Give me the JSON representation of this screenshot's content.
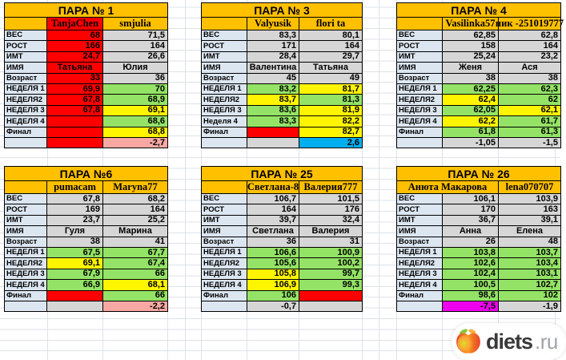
{
  "palette": {
    "orange": "#FFC000",
    "red": "#FE0000",
    "green": "#94E366",
    "yellow": "#FFF500",
    "pink": "#F7A8A3",
    "blue": "#00AEEF",
    "magenta": "#EE00EE",
    "gray": "#D6D6D6",
    "label": "#DCE6F1",
    "grid_line": "#DDE2E8",
    "logo_text": "#3A3A3A",
    "logo_suffix": "#9FA4A9"
  },
  "tables": [
    {
      "title": "ПАРА № 1",
      "names": {
        "n1": "TanjaChen",
        "n1_bg": "red",
        "n2": "smjulia",
        "n2_bg": "orange",
        "merged": false
      },
      "rows": [
        {
          "label": "ВЕС",
          "v1": "68",
          "c1": "red",
          "v2": "71,5",
          "c2": "gray"
        },
        {
          "label": "РОСТ",
          "v1": "166",
          "c1": "red",
          "v2": "164",
          "c2": "gray"
        },
        {
          "label": "ИМТ",
          "v1": "24,7",
          "c1": "red",
          "v2": "26,6",
          "c2": "gray"
        },
        {
          "label": "ИМЯ",
          "v1": "Татьяна",
          "c1": "red",
          "v2": "Юлия",
          "c2": "gray",
          "align": "center"
        },
        {
          "label": "Возраст",
          "v1": "33",
          "c1": "red",
          "v2": "36",
          "c2": "gray"
        },
        {
          "label": "НЕДЕЛЯ 1",
          "v1": "69,9",
          "c1": "red",
          "v2": "70",
          "c2": "green"
        },
        {
          "label": "НЕДЕЛЯ2",
          "v1": "67,8",
          "c1": "red",
          "v2": "68,9",
          "c2": "green"
        },
        {
          "label": "НЕДЕЛЯ 3",
          "v1": "67,8",
          "c1": "red",
          "v2": "69,1",
          "c2": "yellow"
        },
        {
          "label": "НЕДЕЛЯ 4",
          "v1": "",
          "c1": "red",
          "v2": "68,6",
          "c2": "green"
        },
        {
          "label": "Финал",
          "v1": "",
          "c1": "red",
          "v2": "68,8",
          "c2": "yellow"
        },
        {
          "label": "",
          "v1": "",
          "c1": "red",
          "v2": "-2,7",
          "c2": "pink"
        }
      ]
    },
    {
      "title": "ПАРА № 3",
      "names": {
        "n1": "Valyusik",
        "n1_bg": "orange",
        "n2": "flori ta",
        "n2_bg": "orange",
        "merged": false
      },
      "rows": [
        {
          "label": "ВЕС",
          "v1": "83,3",
          "c1": "gray",
          "v2": "80,1",
          "c2": "gray"
        },
        {
          "label": "РОСТ",
          "v1": "171",
          "c1": "gray",
          "v2": "164",
          "c2": "gray"
        },
        {
          "label": "ИМТ",
          "v1": "28,4",
          "c1": "gray",
          "v2": "29,7",
          "c2": "gray"
        },
        {
          "label": "ИМЯ",
          "v1": "Валентина",
          "c1": "gray",
          "v2": "Татьяна",
          "c2": "gray",
          "align": "center"
        },
        {
          "label": "Возраст",
          "v1": "45",
          "c1": "gray",
          "v2": "49",
          "c2": "gray"
        },
        {
          "label": "НЕДЕЛЯ 1",
          "v1": "83,2",
          "c1": "green",
          "v2": "81,7",
          "c2": "yellow"
        },
        {
          "label": "НЕДЕЛЯ2",
          "v1": "83,7",
          "c1": "yellow",
          "v2": "81,3",
          "c2": "green"
        },
        {
          "label": "НЕДЕЛЯ 3",
          "v1": "83,6",
          "c1": "green",
          "v2": "81,9",
          "c2": "yellow"
        },
        {
          "label": "Неделя 4",
          "v1": "83,3",
          "c1": "green",
          "v2": "82,2",
          "c2": "yellow"
        },
        {
          "label": "Финал",
          "v1": "",
          "c1": "red",
          "v2": "82,7",
          "c2": "yellow"
        },
        {
          "label": "",
          "v1": "",
          "c1": "gray",
          "v2": "2,6",
          "c2": "blue"
        }
      ]
    },
    {
      "title": "ПАРА № 4",
      "names": {
        "n1": "Vasilinka57",
        "n1_bg": "orange",
        "n2": "ник -251019777",
        "n2_bg": "orange",
        "merged": false
      },
      "rows": [
        {
          "label": "ВЕС",
          "v1": "62,85",
          "c1": "gray",
          "v2": "62,8",
          "c2": "gray"
        },
        {
          "label": "РОСТ",
          "v1": "158",
          "c1": "gray",
          "v2": "164",
          "c2": "gray"
        },
        {
          "label": "ИМТ",
          "v1": "25,24",
          "c1": "gray",
          "v2": "23,2",
          "c2": "gray"
        },
        {
          "label": "ИМЯ",
          "v1": "Женя",
          "c1": "gray",
          "v2": "Ася",
          "c2": "gray",
          "align": "center"
        },
        {
          "label": "Возраст",
          "v1": "38",
          "c1": "gray",
          "v2": "38",
          "c2": "gray"
        },
        {
          "label": "НЕДЕЛЯ 1",
          "v1": "62,25",
          "c1": "green",
          "v2": "62,3",
          "c2": "green"
        },
        {
          "label": "НЕДЕЛЯ2",
          "v1": "62,4",
          "c1": "yellow",
          "v2": "62",
          "c2": "green"
        },
        {
          "label": "НЕДЕЛЯ 3",
          "v1": "62,05",
          "c1": "green",
          "v2": "62,1",
          "c2": "yellow"
        },
        {
          "label": "НЕДЕЛЯ 4",
          "v1": "62,2",
          "c1": "yellow",
          "v2": "61,7",
          "c2": "green"
        },
        {
          "label": "Финал",
          "v1": "61,8",
          "c1": "green",
          "v2": "61,3",
          "c2": "green"
        },
        {
          "label": "",
          "v1": "-1,05",
          "c1": "gray",
          "v2": "-1,5",
          "c2": "gray"
        }
      ]
    },
    {
      "title": "ПАРА №6",
      "names": {
        "n1": "pumacam",
        "n1_bg": "orange",
        "n2": "Maryna77",
        "n2_bg": "orange",
        "merged": false
      },
      "rows": [
        {
          "label": "ВЕС",
          "v1": "67,8",
          "c1": "gray",
          "v2": "68,2",
          "c2": "gray"
        },
        {
          "label": "РОСТ",
          "v1": "169",
          "c1": "gray",
          "v2": "164",
          "c2": "gray"
        },
        {
          "label": "ИМТ",
          "v1": "23,7",
          "c1": "gray",
          "v2": "25,2",
          "c2": "gray"
        },
        {
          "label": "ИМЯ",
          "v1": "Гуля",
          "c1": "gray",
          "v2": "Марина",
          "c2": "gray",
          "align": "center"
        },
        {
          "label": "Возраст",
          "v1": "38",
          "c1": "gray",
          "v2": "41",
          "c2": "gray"
        },
        {
          "label": "НЕДЕЛЯ 1",
          "v1": "67,5",
          "c1": "green",
          "v2": "67,7",
          "c2": "green"
        },
        {
          "label": "НЕДЕЛЯ2",
          "v1": "69,1",
          "c1": "yellow",
          "v2": "67,4",
          "c2": "green"
        },
        {
          "label": "НЕДЕЛЯ 3",
          "v1": "67,9",
          "c1": "green",
          "v2": "66",
          "c2": "green"
        },
        {
          "label": "НЕДЕЛЯ 4",
          "v1": "66,9",
          "c1": "green",
          "v2": "68,1",
          "c2": "yellow"
        },
        {
          "label": "Финал",
          "v1": "",
          "c1": "red",
          "v2": "66",
          "c2": "green"
        },
        {
          "label": "",
          "v1": "",
          "c1": "gray",
          "v2": "-2,2",
          "c2": "pink"
        }
      ]
    },
    {
      "title": "ПАРА № 25",
      "names": {
        "n1": "Светлана-8",
        "n1_bg": "orange",
        "n2": "Валерия777",
        "n2_bg": "orange",
        "merged": false
      },
      "rows": [
        {
          "label": "ВЕС",
          "v1": "106,7",
          "c1": "gray",
          "v2": "101,5",
          "c2": "gray"
        },
        {
          "label": "РОСТ",
          "v1": "164",
          "c1": "gray",
          "v2": "176",
          "c2": "gray"
        },
        {
          "label": "ИМТ",
          "v1": "39,7",
          "c1": "gray",
          "v2": "32,4",
          "c2": "gray"
        },
        {
          "label": "ИМЯ",
          "v1": "Светлана",
          "c1": "gray",
          "v2": "Валерия",
          "c2": "gray",
          "align": "center"
        },
        {
          "label": "Возраст",
          "v1": "36",
          "c1": "gray",
          "v2": "31",
          "c2": "gray"
        },
        {
          "label": "НЕДЕЛЯ 1",
          "v1": "106,6",
          "c1": "green",
          "v2": "100,9",
          "c2": "green"
        },
        {
          "label": "НЕДЕЛЯ2",
          "v1": "105,6",
          "c1": "green",
          "v2": "100,2",
          "c2": "green"
        },
        {
          "label": "НЕДЕЛЯ 3",
          "v1": "105,8",
          "c1": "yellow",
          "v2": "99,7",
          "c2": "green"
        },
        {
          "label": "НЕДЕЛЯ 4",
          "v1": "106,9",
          "c1": "yellow",
          "v2": "99,3",
          "c2": "green"
        },
        {
          "label": "Финал",
          "v1": "106",
          "c1": "green",
          "v2": "",
          "c2": "red"
        },
        {
          "label": "",
          "v1": "-0,7",
          "c1": "gray",
          "v2": "",
          "c2": "gray"
        }
      ]
    },
    {
      "title": "ПАРА № 26",
      "names": {
        "n1": "Анюта  Макарова",
        "n1_bg": "orange",
        "n2": "lena070707",
        "n2_bg": "orange",
        "merged": true
      },
      "rows": [
        {
          "label": "ВЕС",
          "v1": "106,1",
          "c1": "gray",
          "v2": "103,9",
          "c2": "gray"
        },
        {
          "label": "РОСТ",
          "v1": "170",
          "c1": "gray",
          "v2": "163",
          "c2": "gray"
        },
        {
          "label": "ИМТ",
          "v1": "36,7",
          "c1": "gray",
          "v2": "39,1",
          "c2": "gray"
        },
        {
          "label": "ИМЯ",
          "v1": "Анна",
          "c1": "gray",
          "v2": "Елена",
          "c2": "gray",
          "align": "center"
        },
        {
          "label": "Возраст",
          "v1": "26",
          "c1": "gray",
          "v2": "48",
          "c2": "gray"
        },
        {
          "label": "НЕДЕЛЯ 1",
          "v1": "103,8",
          "c1": "green",
          "v2": "103,7",
          "c2": "green"
        },
        {
          "label": "НЕДЕЛЯ2",
          "v1": "102,6",
          "c1": "green",
          "v2": "103,4",
          "c2": "green"
        },
        {
          "label": "НЕДЕЛЯ 3",
          "v1": "102,4",
          "c1": "green",
          "v2": "103,1",
          "c2": "green"
        },
        {
          "label": "НЕДЕЛЯ 4",
          "v1": "100,5",
          "c1": "green",
          "v2": "102,7",
          "c2": "green"
        },
        {
          "label": "Финал",
          "v1": "98,6",
          "c1": "green",
          "v2": "102",
          "c2": "green"
        },
        {
          "label": "",
          "v1": "-7,5",
          "c1": "magenta",
          "v2": "-1,9",
          "c2": "gray"
        }
      ]
    }
  ],
  "logo": {
    "brand": "diets",
    "suffix": ".ru"
  }
}
